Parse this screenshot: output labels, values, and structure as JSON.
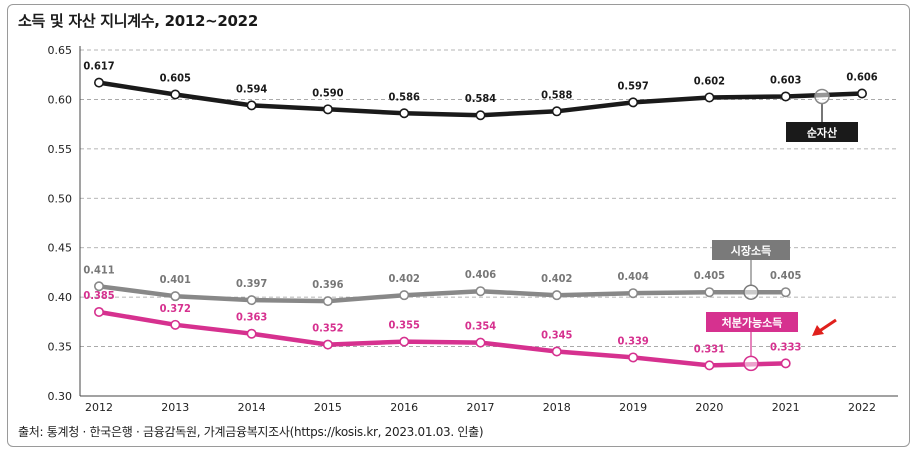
{
  "title": "소득 및 자산 지니계수, 2012~2022",
  "source": "출처: 통계청 · 한국은행 · 금융감독원, 가계금융복지조사(https://kosis.kr, 2023.01.03. 인출)",
  "chart_data": {
    "type": "line",
    "x": [
      "2012",
      "2013",
      "2014",
      "2015",
      "2016",
      "2017",
      "2018",
      "2019",
      "2020",
      "2021",
      "2022"
    ],
    "ylim": [
      0.3,
      0.65
    ],
    "yticks": [
      "0.30",
      "0.35",
      "0.40",
      "0.45",
      "0.50",
      "0.55",
      "0.60",
      "0.65"
    ],
    "grid": "horizontal-dashed",
    "series": [
      {
        "name": "순자산",
        "color": "#1a1a1a",
        "label_color": "#1a1a1a",
        "tag_color": "#1a1a1a",
        "values": [
          0.617,
          0.605,
          0.594,
          0.59,
          0.586,
          0.584,
          0.588,
          0.597,
          0.602,
          0.603,
          0.606
        ],
        "labels": [
          "0.617",
          "0.605",
          "0.594",
          "0.590",
          "0.586",
          "0.584",
          "0.588",
          "0.597",
          "0.602",
          "0.603",
          "0.606"
        ]
      },
      {
        "name": "시장소득",
        "color": "#888888",
        "label_color": "#777777",
        "tag_color": "#7a7a7a",
        "values": [
          0.411,
          0.401,
          0.397,
          0.396,
          0.402,
          0.406,
          0.402,
          0.404,
          0.405,
          0.405,
          null
        ],
        "labels": [
          "0.411",
          "0.401",
          "0.397",
          "0.396",
          "0.402",
          "0.406",
          "0.402",
          "0.404",
          "0.405",
          "0.405",
          null
        ]
      },
      {
        "name": "처분가능소득",
        "color": "#d6318f",
        "label_color": "#d6318f",
        "tag_color": "#d6318f",
        "values": [
          0.385,
          0.372,
          0.363,
          0.352,
          0.355,
          0.354,
          0.345,
          0.339,
          0.331,
          0.333,
          null
        ],
        "labels": [
          "0.385",
          "0.372",
          "0.363",
          "0.352",
          "0.355",
          "0.354",
          "0.345",
          "0.339",
          "0.331",
          "0.333",
          null
        ]
      }
    ],
    "annotation_arrow_color": "#e0201c"
  }
}
